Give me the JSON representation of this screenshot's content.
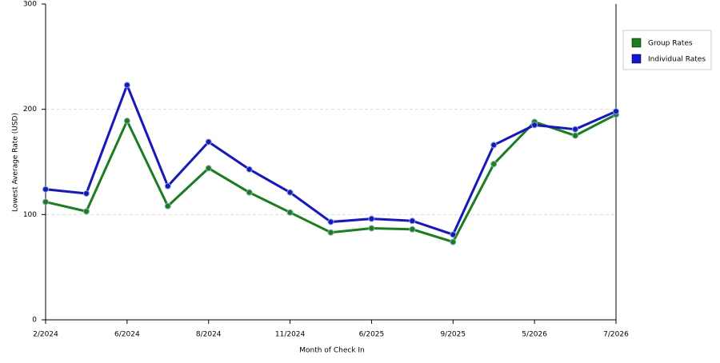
{
  "chart_data": {
    "type": "line",
    "x_label": "Month of Check In",
    "y_label": "Lowest Average Rate (USD)",
    "categories": [
      "2/2024",
      null,
      "6/2024",
      null,
      "8/2024",
      null,
      "11/2024",
      null,
      "6/2025",
      null,
      "9/2025",
      null,
      "5/2026",
      null,
      "7/2026"
    ],
    "series": [
      {
        "name": "Group Rates",
        "color": "#17801a",
        "values": [
          112,
          103,
          189,
          108,
          144,
          121,
          102,
          83,
          87,
          86,
          74,
          148,
          188,
          175,
          195
        ]
      },
      {
        "name": "Individual Rates",
        "color": "#1414d2",
        "values": [
          124,
          120,
          223,
          127,
          169,
          143,
          121,
          93,
          96,
          94,
          81,
          166,
          185,
          181,
          198
        ]
      }
    ],
    "ylim": [
      0,
      300
    ],
    "yticks": [
      0,
      100,
      200,
      300
    ],
    "grid": true,
    "legend": "right"
  }
}
